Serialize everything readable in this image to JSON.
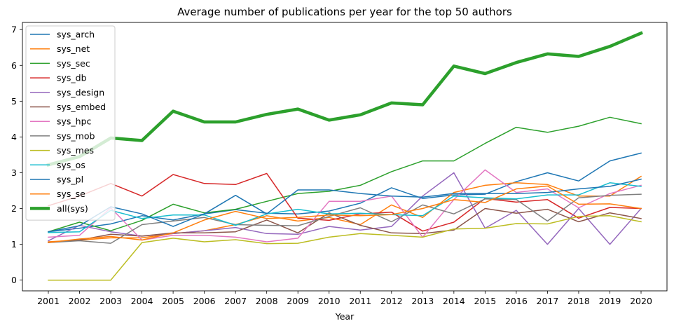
{
  "chart_data": {
    "type": "line",
    "title": "Average number of publications per year for the top 50 authors",
    "xlabel": "Year",
    "ylabel": "",
    "x": [
      2001,
      2002,
      2003,
      2004,
      2005,
      2006,
      2007,
      2008,
      2009,
      2010,
      2011,
      2012,
      2013,
      2014,
      2015,
      2016,
      2017,
      2018,
      2019,
      2020
    ],
    "ylim": [
      -0.3,
      7.2
    ],
    "yticks": [
      0,
      1,
      2,
      3,
      4,
      5,
      6,
      7
    ],
    "grid": false,
    "legend_position": "upper-left",
    "series": [
      {
        "name": "sys_arch",
        "color": "#1f77b4",
        "width": 1.5,
        "values": [
          1.35,
          1.45,
          1.57,
          1.8,
          1.68,
          1.85,
          1.97,
          1.87,
          1.85,
          1.93,
          2.15,
          2.58,
          2.28,
          2.38,
          2.4,
          2.75,
          3.0,
          2.77,
          3.33,
          3.55
        ]
      },
      {
        "name": "sys_net",
        "color": "#ff7f0e",
        "width": 1.5,
        "values": [
          1.07,
          1.12,
          1.18,
          1.18,
          1.3,
          1.38,
          1.55,
          1.8,
          1.65,
          1.75,
          1.55,
          2.1,
          1.75,
          2.45,
          2.65,
          2.72,
          2.67,
          2.35,
          2.35,
          2.9
        ]
      },
      {
        "name": "sys_sec",
        "color": "#2ca02c",
        "width": 1.5,
        "values": [
          1.35,
          1.62,
          1.38,
          1.67,
          2.12,
          1.88,
          1.98,
          2.2,
          2.42,
          2.48,
          2.65,
          3.03,
          3.33,
          3.33,
          3.82,
          4.27,
          4.13,
          4.3,
          4.55,
          4.37
        ]
      },
      {
        "name": "sys_db",
        "color": "#d62728",
        "width": 1.5,
        "values": [
          2.08,
          2.35,
          2.7,
          2.35,
          2.95,
          2.7,
          2.67,
          2.98,
          1.73,
          1.67,
          1.85,
          1.9,
          1.37,
          1.62,
          2.28,
          2.18,
          2.25,
          1.73,
          2.03,
          2.0
        ]
      },
      {
        "name": "sys_design",
        "color": "#9467bd",
        "width": 1.5,
        "values": [
          1.1,
          1.53,
          1.35,
          1.23,
          1.3,
          1.38,
          1.47,
          1.3,
          1.28,
          1.5,
          1.4,
          1.5,
          2.35,
          3.0,
          1.45,
          1.95,
          1.0,
          2.0,
          1.0,
          2.0
        ]
      },
      {
        "name": "sys_embed",
        "color": "#8c564b",
        "width": 1.5,
        "values": [
          1.05,
          1.12,
          1.28,
          1.23,
          1.32,
          1.32,
          1.35,
          1.68,
          1.32,
          1.88,
          1.53,
          1.32,
          1.3,
          1.4,
          2.0,
          1.87,
          1.98,
          1.63,
          1.88,
          1.72
        ]
      },
      {
        "name": "sys_hpc",
        "color": "#e377c2",
        "width": 1.5,
        "values": [
          1.2,
          1.25,
          2.02,
          1.12,
          1.25,
          1.25,
          1.2,
          1.07,
          1.17,
          2.2,
          2.2,
          2.35,
          1.2,
          2.25,
          3.08,
          2.45,
          2.55,
          2.02,
          2.42,
          2.65
        ]
      },
      {
        "name": "sys_mob",
        "color": "#7f7f7f",
        "width": 1.5,
        "values": [
          1.05,
          1.1,
          1.03,
          1.55,
          1.65,
          1.75,
          1.55,
          1.53,
          1.52,
          1.78,
          2.02,
          1.63,
          2.1,
          1.85,
          2.27,
          2.25,
          1.65,
          2.3,
          2.37,
          2.4
        ]
      },
      {
        "name": "sys_mes",
        "color": "#bcbd22",
        "width": 1.5,
        "values": [
          0.0,
          0.0,
          0.0,
          1.05,
          1.17,
          1.07,
          1.13,
          1.02,
          1.03,
          1.2,
          1.3,
          1.25,
          1.2,
          1.43,
          1.45,
          1.58,
          1.57,
          1.78,
          1.8,
          1.63
        ]
      },
      {
        "name": "sys_os",
        "color": "#17becf",
        "width": 1.5,
        "values": [
          1.33,
          1.35,
          1.95,
          1.72,
          1.82,
          1.82,
          1.53,
          1.85,
          1.98,
          1.85,
          1.87,
          1.83,
          1.8,
          2.35,
          2.3,
          2.27,
          2.38,
          2.38,
          2.72,
          2.62
        ]
      },
      {
        "name": "sys_pl",
        "color": "#1f77b4",
        "width": 1.5,
        "values": [
          1.35,
          1.52,
          2.05,
          1.85,
          1.5,
          1.85,
          2.37,
          1.85,
          2.52,
          2.52,
          2.42,
          2.35,
          2.32,
          2.42,
          2.42,
          2.42,
          2.45,
          2.55,
          2.62,
          2.82
        ]
      },
      {
        "name": "sys_se",
        "color": "#ff7f0e",
        "width": 1.5,
        "values": [
          1.05,
          1.15,
          1.22,
          1.12,
          1.32,
          1.68,
          1.92,
          1.72,
          1.75,
          1.82,
          1.8,
          1.83,
          2.0,
          2.25,
          2.17,
          2.55,
          2.63,
          2.12,
          2.13,
          2.0
        ]
      },
      {
        "name": "all(sys)",
        "color": "#2ca02c",
        "width": 4.5,
        "values": [
          3.22,
          3.45,
          3.97,
          3.9,
          4.72,
          4.42,
          4.42,
          4.63,
          4.78,
          4.47,
          4.62,
          4.95,
          4.9,
          5.98,
          5.77,
          6.08,
          6.32,
          6.25,
          6.53,
          6.9
        ]
      }
    ]
  }
}
